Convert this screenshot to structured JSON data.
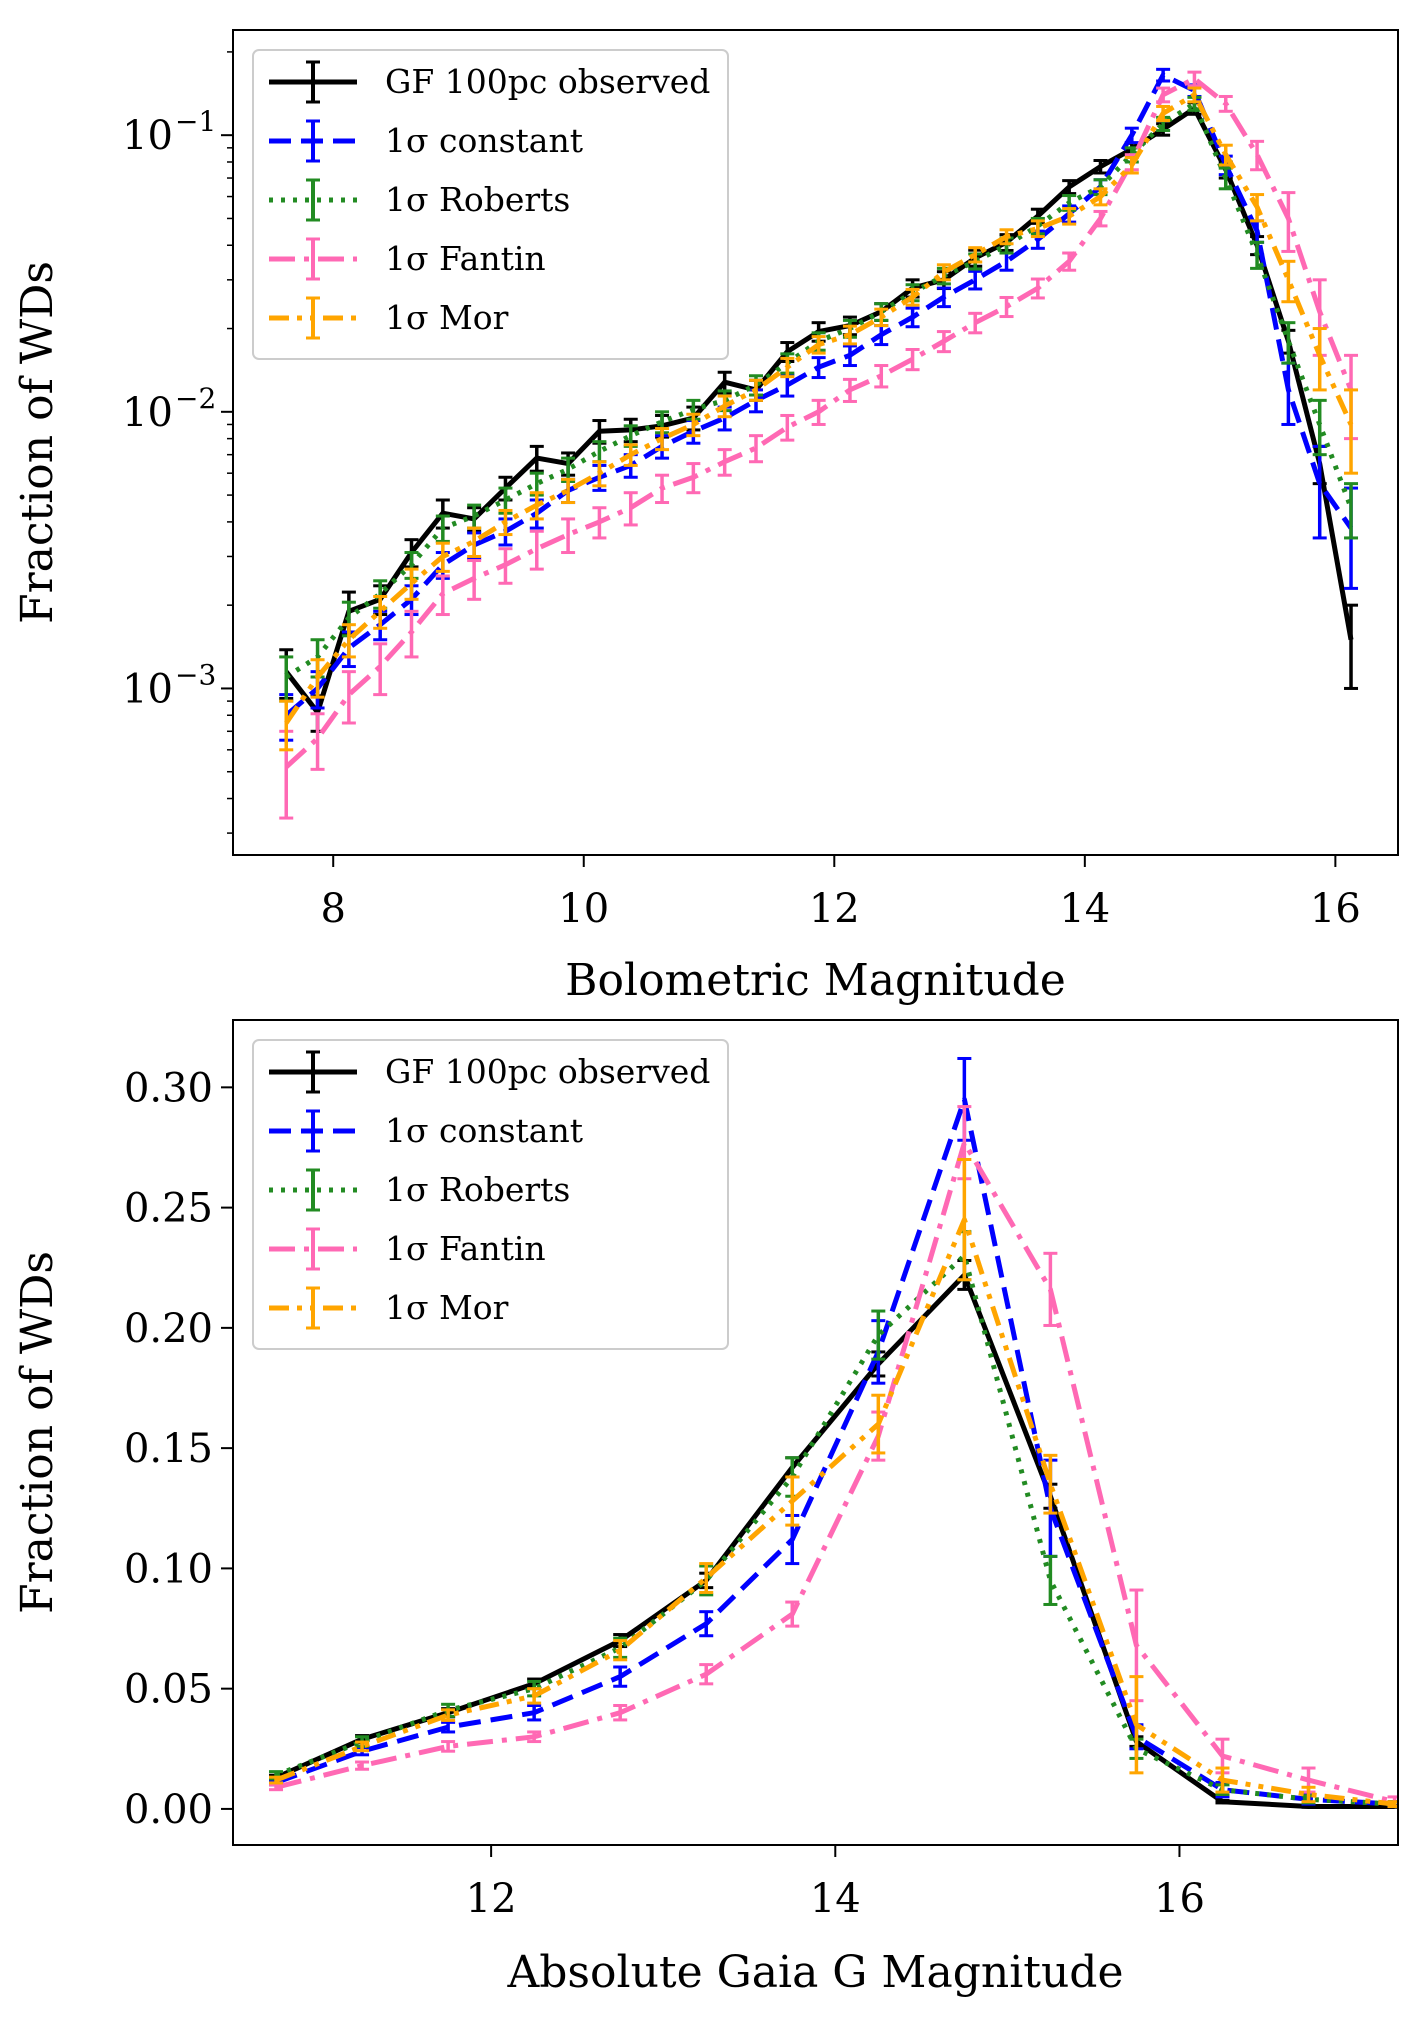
{
  "chart_data": [
    {
      "type": "line",
      "xlabel": "Bolometric Magnitude",
      "ylabel": "Fraction of WDs",
      "yscale": "log",
      "xlim": [
        7.2,
        16.5
      ],
      "ylim": [
        0.00025,
        0.24
      ],
      "x_ticks": [
        8,
        10,
        12,
        14,
        16
      ],
      "x_tick_labels": [
        "8",
        "10",
        "12",
        "14",
        "16"
      ],
      "y_ticks": [
        0.001,
        0.01,
        0.1
      ],
      "y_tick_mantissa": "10",
      "y_tick_exponents": [
        "−3",
        "−2",
        "−1"
      ],
      "legend_position": "upper left",
      "grid": false,
      "series": [
        {
          "name": "GF 100pc observed",
          "color": "#000000",
          "dash": "solid",
          "x": [
            7.625,
            7.875,
            8.125,
            8.375,
            8.625,
            8.875,
            9.125,
            9.375,
            9.625,
            9.875,
            10.125,
            10.375,
            10.625,
            10.875,
            11.125,
            11.375,
            11.625,
            11.875,
            12.125,
            12.375,
            12.625,
            12.875,
            13.125,
            13.375,
            13.625,
            13.875,
            14.125,
            14.375,
            14.625,
            14.875,
            15.125,
            15.375,
            15.625,
            15.875,
            16.125
          ],
          "y": [
            0.00115,
            0.00082,
            0.0019,
            0.0021,
            0.0031,
            0.0043,
            0.0041,
            0.0053,
            0.0068,
            0.0065,
            0.0085,
            0.0086,
            0.0089,
            0.0095,
            0.0128,
            0.012,
            0.0165,
            0.0195,
            0.0205,
            0.023,
            0.028,
            0.03,
            0.036,
            0.041,
            0.051,
            0.065,
            0.077,
            0.089,
            0.105,
            0.125,
            0.075,
            0.04,
            0.018,
            0.0065,
            0.0015
          ],
          "err": [
            0.00023,
            0.00012,
            0.00033,
            0.00025,
            0.00035,
            0.0005,
            0.0004,
            0.0005,
            0.0007,
            0.0006,
            0.0008,
            0.0008,
            0.0008,
            0.0009,
            0.0011,
            0.001,
            0.0013,
            0.0015,
            0.0015,
            0.0016,
            0.002,
            0.0021,
            0.0024,
            0.0027,
            0.003,
            0.0035,
            0.004,
            0.0045,
            0.005,
            0.006,
            0.005,
            0.003,
            0.0017,
            0.001,
            0.0005
          ]
        },
        {
          "name": "1σ constant",
          "color": "#0000ff",
          "dash": "dashed",
          "x": [
            7.625,
            7.875,
            8.125,
            8.375,
            8.625,
            8.875,
            9.125,
            9.375,
            9.625,
            9.875,
            10.125,
            10.375,
            10.625,
            10.875,
            11.125,
            11.375,
            11.625,
            11.875,
            12.125,
            12.375,
            12.625,
            12.875,
            13.125,
            13.375,
            13.625,
            13.875,
            14.125,
            14.375,
            14.625,
            14.875,
            15.125,
            15.375,
            15.625,
            15.875,
            16.125
          ],
          "y": [
            0.0008,
            0.001,
            0.0014,
            0.0017,
            0.0021,
            0.0028,
            0.0033,
            0.0037,
            0.0043,
            0.0052,
            0.0058,
            0.0064,
            0.0075,
            0.0085,
            0.0095,
            0.011,
            0.0125,
            0.0145,
            0.016,
            0.019,
            0.022,
            0.026,
            0.03,
            0.035,
            0.042,
            0.052,
            0.065,
            0.1,
            0.165,
            0.145,
            0.078,
            0.045,
            0.012,
            0.0055,
            0.0038
          ],
          "err": [
            0.00015,
            0.00015,
            0.0002,
            0.0002,
            0.00025,
            0.0003,
            0.00035,
            0.0004,
            0.0005,
            0.0005,
            0.0006,
            0.0006,
            0.0007,
            0.0008,
            0.0009,
            0.001,
            0.0011,
            0.0012,
            0.0013,
            0.0015,
            0.0017,
            0.002,
            0.0022,
            0.0025,
            0.003,
            0.0035,
            0.004,
            0.006,
            0.008,
            0.007,
            0.006,
            0.004,
            0.003,
            0.002,
            0.0015
          ]
        },
        {
          "name": "1σ Roberts",
          "color": "#228b22",
          "dash": "dotted",
          "x": [
            7.625,
            7.875,
            8.125,
            8.375,
            8.625,
            8.875,
            9.125,
            9.375,
            9.625,
            9.875,
            10.125,
            10.375,
            10.625,
            10.875,
            11.125,
            11.375,
            11.625,
            11.875,
            12.125,
            12.375,
            12.625,
            12.875,
            13.125,
            13.375,
            13.625,
            13.875,
            14.125,
            14.375,
            14.625,
            14.875,
            15.125,
            15.375,
            15.625,
            15.875,
            16.125
          ],
          "y": [
            0.0011,
            0.0013,
            0.0018,
            0.0022,
            0.0028,
            0.0038,
            0.0042,
            0.0048,
            0.0055,
            0.0062,
            0.0072,
            0.0082,
            0.0092,
            0.0102,
            0.011,
            0.0125,
            0.015,
            0.018,
            0.02,
            0.023,
            0.027,
            0.031,
            0.035,
            0.04,
            0.047,
            0.057,
            0.065,
            0.085,
            0.11,
            0.13,
            0.07,
            0.037,
            0.018,
            0.009,
            0.0045
          ],
          "err": [
            0.0002,
            0.0002,
            0.00025,
            0.00025,
            0.0003,
            0.0004,
            0.0004,
            0.0005,
            0.0005,
            0.0006,
            0.0006,
            0.0007,
            0.0008,
            0.0008,
            0.0009,
            0.001,
            0.0012,
            0.0013,
            0.0014,
            0.0016,
            0.0018,
            0.002,
            0.0022,
            0.0025,
            0.003,
            0.0035,
            0.004,
            0.005,
            0.006,
            0.007,
            0.006,
            0.004,
            0.003,
            0.002,
            0.001
          ]
        },
        {
          "name": "1σ Fantin",
          "color": "#ff69b4",
          "dash": "dashdot",
          "x": [
            7.625,
            7.875,
            8.125,
            8.375,
            8.625,
            8.875,
            9.125,
            9.375,
            9.625,
            9.875,
            10.125,
            10.375,
            10.625,
            10.875,
            11.125,
            11.375,
            11.625,
            11.875,
            12.125,
            12.375,
            12.625,
            12.875,
            13.125,
            13.375,
            13.625,
            13.875,
            14.125,
            14.375,
            14.625,
            14.875,
            15.125,
            15.375,
            15.625,
            15.875,
            16.125
          ],
          "y": [
            0.00052,
            0.00066,
            0.00095,
            0.0012,
            0.0016,
            0.0022,
            0.0025,
            0.0028,
            0.0032,
            0.0036,
            0.004,
            0.0045,
            0.0053,
            0.0058,
            0.0066,
            0.0074,
            0.0088,
            0.01,
            0.012,
            0.0135,
            0.0155,
            0.018,
            0.021,
            0.024,
            0.028,
            0.035,
            0.05,
            0.08,
            0.14,
            0.16,
            0.13,
            0.085,
            0.05,
            0.023,
            0.012
          ],
          "err": [
            0.00018,
            0.00015,
            0.0002,
            0.00025,
            0.0003,
            0.00035,
            0.0004,
            0.0004,
            0.0005,
            0.0005,
            0.0005,
            0.0006,
            0.0006,
            0.0007,
            0.0007,
            0.0008,
            0.0009,
            0.001,
            0.0011,
            0.0012,
            0.0013,
            0.0015,
            0.0017,
            0.0019,
            0.0022,
            0.0025,
            0.003,
            0.005,
            0.008,
            0.009,
            0.008,
            0.01,
            0.012,
            0.007,
            0.004
          ]
        },
        {
          "name": "1σ Mor",
          "color": "#ffa500",
          "dash": "dashdotdot",
          "x": [
            7.625,
            7.875,
            8.125,
            8.375,
            8.625,
            8.875,
            9.125,
            9.375,
            9.625,
            9.875,
            10.125,
            10.375,
            10.625,
            10.875,
            11.125,
            11.375,
            11.625,
            11.875,
            12.125,
            12.375,
            12.625,
            12.875,
            13.125,
            13.375,
            13.625,
            13.875,
            14.125,
            14.375,
            14.625,
            14.875,
            15.125,
            15.375,
            15.625,
            15.875,
            16.125
          ],
          "y": [
            0.00075,
            0.0011,
            0.0015,
            0.0019,
            0.0024,
            0.003,
            0.0034,
            0.004,
            0.0046,
            0.0052,
            0.006,
            0.007,
            0.008,
            0.009,
            0.0105,
            0.012,
            0.0145,
            0.0175,
            0.019,
            0.022,
            0.026,
            0.032,
            0.037,
            0.043,
            0.046,
            0.051,
            0.06,
            0.078,
            0.12,
            0.14,
            0.085,
            0.055,
            0.03,
            0.016,
            0.009
          ],
          "err": [
            0.00015,
            0.00017,
            0.0002,
            0.00025,
            0.0003,
            0.00035,
            0.0004,
            0.0004,
            0.0005,
            0.0005,
            0.0006,
            0.0006,
            0.0007,
            0.0008,
            0.0009,
            0.001,
            0.0011,
            0.0012,
            0.0014,
            0.0015,
            0.0017,
            0.002,
            0.0022,
            0.0025,
            0.003,
            0.0033,
            0.004,
            0.005,
            0.007,
            0.008,
            0.007,
            0.006,
            0.005,
            0.004,
            0.003
          ]
        }
      ]
    },
    {
      "type": "line",
      "xlabel": "Absolute Gaia G Magnitude",
      "ylabel": "Fraction of WDs",
      "yscale": "linear",
      "xlim": [
        10.5,
        17.27
      ],
      "ylim": [
        -0.015,
        0.328
      ],
      "x_ticks": [
        12,
        14,
        16
      ],
      "x_tick_labels": [
        "12",
        "14",
        "16"
      ],
      "y_ticks": [
        0,
        0.05,
        0.1,
        0.15,
        0.2,
        0.25,
        0.3
      ],
      "y_tick_labels": [
        "0.00",
        "0.05",
        "0.10",
        "0.15",
        "0.20",
        "0.25",
        "0.30"
      ],
      "legend_position": "upper left",
      "grid": false,
      "series": [
        {
          "name": "GF 100pc observed",
          "color": "#000000",
          "dash": "solid",
          "x": [
            10.75,
            11.25,
            11.75,
            12.25,
            12.75,
            13.25,
            13.75,
            14.25,
            14.75,
            15.25,
            15.75,
            16.25,
            16.75,
            17.25
          ],
          "y": [
            0.013,
            0.029,
            0.04,
            0.052,
            0.07,
            0.095,
            0.142,
            0.185,
            0.222,
            0.13,
            0.028,
            0.003,
            0.001,
            0.001
          ],
          "err": [
            0.001,
            0.0015,
            0.0017,
            0.002,
            0.0025,
            0.003,
            0.004,
            0.005,
            0.006,
            0.005,
            0.002,
            0.0005,
            0.0003,
            0.0003
          ]
        },
        {
          "name": "1σ constant",
          "color": "#0000ff",
          "dash": "dashed",
          "x": [
            10.75,
            11.25,
            11.75,
            12.25,
            12.75,
            13.25,
            13.75,
            14.25,
            14.75,
            15.25,
            15.75,
            16.25,
            16.75,
            17.25
          ],
          "y": [
            0.011,
            0.024,
            0.034,
            0.04,
            0.055,
            0.077,
            0.112,
            0.19,
            0.295,
            0.125,
            0.03,
            0.008,
            0.004,
            0.002
          ],
          "err": [
            0.001,
            0.0015,
            0.002,
            0.003,
            0.004,
            0.005,
            0.01,
            0.013,
            0.017,
            0.02,
            0.005,
            0.003,
            0.002,
            0.001
          ]
        },
        {
          "name": "1σ Roberts",
          "color": "#228b22",
          "dash": "dotted",
          "x": [
            10.75,
            11.25,
            11.75,
            12.25,
            12.75,
            13.25,
            13.75,
            14.25,
            14.75,
            15.25,
            15.75,
            16.25,
            16.75,
            17.25
          ],
          "y": [
            0.014,
            0.028,
            0.041,
            0.05,
            0.067,
            0.095,
            0.138,
            0.197,
            0.23,
            0.095,
            0.025,
            0.008,
            0.004,
            0.002
          ],
          "err": [
            0.0015,
            0.002,
            0.0025,
            0.003,
            0.004,
            0.006,
            0.008,
            0.01,
            0.01,
            0.01,
            0.004,
            0.002,
            0.0015,
            0.001
          ]
        },
        {
          "name": "1σ Fantin",
          "color": "#ff69b4",
          "dash": "dashdot",
          "x": [
            10.75,
            11.25,
            11.75,
            12.25,
            12.75,
            13.25,
            13.75,
            14.25,
            14.75,
            15.25,
            15.75,
            16.25,
            16.75,
            17.25
          ],
          "y": [
            0.009,
            0.018,
            0.026,
            0.03,
            0.04,
            0.056,
            0.081,
            0.155,
            0.277,
            0.216,
            0.068,
            0.022,
            0.012,
            0.003
          ],
          "err": [
            0.001,
            0.0015,
            0.002,
            0.002,
            0.003,
            0.004,
            0.005,
            0.01,
            0.015,
            0.015,
            0.023,
            0.007,
            0.005,
            0.002
          ]
        },
        {
          "name": "1σ Mor",
          "color": "#ffa500",
          "dash": "dashdotdot",
          "x": [
            10.75,
            11.25,
            11.75,
            12.25,
            12.75,
            13.25,
            13.75,
            14.25,
            14.75,
            15.25,
            15.75,
            16.25,
            16.75,
            17.25
          ],
          "y": [
            0.012,
            0.026,
            0.039,
            0.047,
            0.066,
            0.096,
            0.128,
            0.16,
            0.245,
            0.135,
            0.035,
            0.012,
            0.006,
            0.002
          ],
          "err": [
            0.0012,
            0.0018,
            0.0022,
            0.003,
            0.004,
            0.006,
            0.01,
            0.012,
            0.025,
            0.012,
            0.02,
            0.005,
            0.003,
            0.001
          ]
        }
      ]
    }
  ]
}
